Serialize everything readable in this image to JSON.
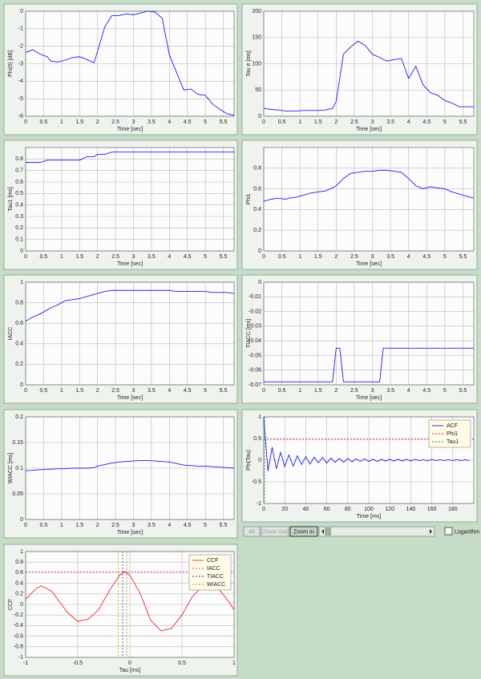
{
  "chart_data": [
    {
      "type": "line",
      "xlabel": "Time [sec]",
      "ylabel": "Phi(0) [dB]",
      "color": "#2020e0",
      "grid": true,
      "x": [
        0,
        0.2,
        0.4,
        0.6,
        0.7,
        0.9,
        1.1,
        1.3,
        1.5,
        1.7,
        1.9,
        2.0,
        2.2,
        2.4,
        2.6,
        2.8,
        3.0,
        3.2,
        3.4,
        3.6,
        3.8,
        4.0,
        4.2,
        4.4,
        4.6,
        4.8,
        5.0,
        5.2,
        5.4,
        5.6,
        5.8
      ],
      "values": [
        -2.35,
        -2.2,
        -2.45,
        -2.6,
        -2.85,
        -2.9,
        -2.8,
        -2.65,
        -2.6,
        -2.75,
        -2.95,
        -2.3,
        -0.9,
        -0.25,
        -0.25,
        -0.15,
        -0.2,
        -0.1,
        0,
        -0.05,
        -0.4,
        -2.5,
        -3.5,
        -4.5,
        -4.45,
        -4.75,
        -4.8,
        -5.3,
        -5.6,
        -5.85,
        -5.95
      ],
      "xlim": [
        0,
        5.8
      ],
      "xticks": [
        0,
        0.5,
        1,
        1.5,
        2,
        2.5,
        3,
        3.5,
        4,
        4.5,
        5,
        5.5
      ],
      "ylim": [
        -6,
        0
      ],
      "yticks": [
        -6,
        -5,
        -4,
        -3,
        -2,
        -1,
        0
      ]
    },
    {
      "type": "line",
      "xlabel": "Time [sec]",
      "ylabel": "Tau e [ms]",
      "color": "#2020e0",
      "grid": true,
      "x": [
        0,
        0.2,
        0.4,
        0.6,
        0.7,
        0.9,
        1.1,
        1.3,
        1.5,
        1.7,
        1.9,
        2.0,
        2.2,
        2.4,
        2.6,
        2.8,
        3.0,
        3.2,
        3.4,
        3.6,
        3.8,
        4.0,
        4.2,
        4.4,
        4.6,
        4.8,
        5.0,
        5.2,
        5.4,
        5.6,
        5.8
      ],
      "values": [
        15,
        13,
        12,
        10,
        10,
        10,
        11,
        11,
        11,
        12,
        15,
        28,
        118,
        132,
        143,
        135,
        118,
        112,
        105,
        108,
        110,
        72,
        95,
        60,
        45,
        40,
        30,
        25,
        18,
        18,
        18
      ],
      "xlim": [
        0,
        5.8
      ],
      "xticks": [
        0,
        0.5,
        1,
        1.5,
        2,
        2.5,
        3,
        3.5,
        4,
        4.5,
        5,
        5.5
      ],
      "ylim": [
        0,
        200
      ],
      "yticks": [
        0,
        50,
        100,
        150,
        200
      ]
    },
    {
      "type": "line",
      "xlabel": "Time [sec]",
      "ylabel": "Tau1 [ms]",
      "color": "#2020e0",
      "grid": true,
      "x": [
        0,
        0.2,
        0.4,
        0.6,
        0.7,
        0.9,
        1.1,
        1.3,
        1.5,
        1.7,
        1.9,
        2.0,
        2.2,
        2.4,
        2.6,
        2.8,
        3.0,
        3.2,
        3.4,
        3.6,
        3.8,
        4.0,
        4.2,
        4.4,
        4.6,
        4.8,
        5.0,
        5.2,
        5.4,
        5.6,
        5.8
      ],
      "values": [
        0.77,
        0.77,
        0.77,
        0.79,
        0.79,
        0.79,
        0.79,
        0.79,
        0.79,
        0.82,
        0.82,
        0.84,
        0.84,
        0.86,
        0.86,
        0.86,
        0.86,
        0.86,
        0.86,
        0.86,
        0.86,
        0.86,
        0.86,
        0.86,
        0.86,
        0.86,
        0.86,
        0.86,
        0.86,
        0.86,
        0.86
      ],
      "xlim": [
        0,
        5.8
      ],
      "xticks": [
        0,
        0.5,
        1,
        1.5,
        2,
        2.5,
        3,
        3.5,
        4,
        4.5,
        5,
        5.5
      ],
      "ylim": [
        0,
        0.9
      ],
      "yticks": [
        0,
        0.1,
        0.2,
        0.3,
        0.4,
        0.5,
        0.6,
        0.7,
        0.8
      ]
    },
    {
      "type": "line",
      "xlabel": "Time [sec]",
      "ylabel": "Phi1",
      "color": "#2020e0",
      "grid": true,
      "x": [
        0,
        0.2,
        0.4,
        0.6,
        0.7,
        0.9,
        1.1,
        1.3,
        1.5,
        1.7,
        1.9,
        2.0,
        2.2,
        2.4,
        2.6,
        2.8,
        3.0,
        3.2,
        3.4,
        3.6,
        3.8,
        4.0,
        4.2,
        4.4,
        4.6,
        4.8,
        5.0,
        5.2,
        5.4,
        5.6,
        5.8
      ],
      "values": [
        0.48,
        0.5,
        0.51,
        0.5,
        0.51,
        0.52,
        0.54,
        0.56,
        0.57,
        0.58,
        0.61,
        0.63,
        0.7,
        0.75,
        0.76,
        0.77,
        0.77,
        0.78,
        0.78,
        0.77,
        0.76,
        0.7,
        0.63,
        0.6,
        0.62,
        0.61,
        0.6,
        0.57,
        0.55,
        0.53,
        0.51
      ],
      "xlim": [
        0,
        5.8
      ],
      "xticks": [
        0,
        0.5,
        1,
        1.5,
        2,
        2.5,
        3,
        3.5,
        4,
        4.5,
        5,
        5.5
      ],
      "ylim": [
        0,
        1
      ],
      "yticks": [
        0,
        0.2,
        0.4,
        0.6,
        0.8
      ]
    },
    {
      "type": "line",
      "xlabel": "Time [sec]",
      "ylabel": "IACC",
      "color": "#2020e0",
      "grid": true,
      "x": [
        0,
        0.2,
        0.4,
        0.6,
        0.7,
        0.9,
        1.1,
        1.3,
        1.5,
        1.7,
        1.9,
        2.0,
        2.2,
        2.4,
        2.6,
        2.8,
        3.0,
        3.2,
        3.4,
        3.6,
        3.8,
        4.0,
        4.2,
        4.4,
        4.6,
        4.8,
        5.0,
        5.2,
        5.4,
        5.6,
        5.8
      ],
      "values": [
        0.62,
        0.66,
        0.69,
        0.73,
        0.75,
        0.78,
        0.82,
        0.83,
        0.84,
        0.86,
        0.88,
        0.89,
        0.91,
        0.92,
        0.92,
        0.92,
        0.92,
        0.92,
        0.92,
        0.92,
        0.92,
        0.92,
        0.91,
        0.91,
        0.91,
        0.91,
        0.91,
        0.9,
        0.9,
        0.9,
        0.89
      ],
      "xlim": [
        0,
        5.8
      ],
      "xticks": [
        0,
        0.5,
        1,
        1.5,
        2,
        2.5,
        3,
        3.5,
        4,
        4.5,
        5,
        5.5
      ],
      "ylim": [
        0,
        1
      ],
      "yticks": [
        0,
        0.2,
        0.4,
        0.6,
        0.8,
        1
      ]
    },
    {
      "type": "line",
      "xlabel": "Time [sec]",
      "ylabel": "TIACC [ms]",
      "color": "#2020e0",
      "grid": true,
      "x": [
        0,
        1.9,
        2.0,
        2.1,
        2.2,
        3.2,
        3.3,
        5.8
      ],
      "values": [
        -0.068,
        -0.068,
        -0.045,
        -0.045,
        -0.068,
        -0.068,
        -0.045,
        -0.045
      ],
      "xlim": [
        0,
        5.8
      ],
      "xticks": [
        0,
        0.5,
        1,
        1.5,
        2,
        2.5,
        3,
        3.5,
        4,
        4.5,
        5,
        5.5
      ],
      "ylim": [
        -0.07,
        0
      ],
      "yticks": [
        -0.07,
        -0.06,
        -0.05,
        -0.04,
        -0.03,
        -0.02,
        -0.01,
        0
      ]
    },
    {
      "type": "line",
      "xlabel": "Time [sec]",
      "ylabel": "WIACC [ms]",
      "color": "#2020e0",
      "grid": true,
      "x": [
        0,
        0.2,
        0.4,
        0.6,
        0.7,
        0.9,
        1.1,
        1.3,
        1.5,
        1.7,
        1.9,
        2.0,
        2.2,
        2.4,
        2.6,
        2.8,
        3.0,
        3.2,
        3.4,
        3.6,
        3.8,
        4.0,
        4.2,
        4.4,
        4.6,
        4.8,
        5.0,
        5.2,
        5.4,
        5.6,
        5.8
      ],
      "values": [
        0.095,
        0.096,
        0.097,
        0.098,
        0.098,
        0.099,
        0.099,
        0.1,
        0.1,
        0.1,
        0.101,
        0.104,
        0.107,
        0.11,
        0.112,
        0.113,
        0.114,
        0.115,
        0.115,
        0.114,
        0.113,
        0.112,
        0.109,
        0.106,
        0.105,
        0.104,
        0.104,
        0.103,
        0.102,
        0.101,
        0.1
      ],
      "xlim": [
        0,
        5.8
      ],
      "xticks": [
        0,
        0.5,
        1,
        1.5,
        2,
        2.5,
        3,
        3.5,
        4,
        4.5,
        5,
        5.5
      ],
      "ylim": [
        0,
        0.2
      ],
      "yticks": [
        0,
        0.05,
        0.1,
        0.15,
        0.2
      ]
    },
    {
      "type": "line",
      "xlabel": "Time [ms]",
      "ylabel": "Phi(Tau)",
      "grid": true,
      "legend": "upper right",
      "x": [
        0,
        4,
        8,
        12,
        16,
        20,
        24,
        28,
        32,
        36,
        40,
        44,
        48,
        52,
        56,
        60,
        64,
        68,
        72,
        76,
        80,
        84,
        88,
        92,
        96,
        100,
        104,
        108,
        112,
        116,
        120,
        124,
        128,
        132,
        136,
        140,
        144,
        148,
        152,
        156,
        160,
        164,
        168,
        172,
        176,
        180,
        184,
        188,
        192,
        196
      ],
      "series": [
        {
          "name": "ACF",
          "color": "#2020e0",
          "values": [
            1,
            -0.25,
            0.3,
            -0.2,
            0.18,
            -0.15,
            0.12,
            -0.14,
            0.1,
            -0.1,
            0.08,
            -0.09,
            0.07,
            -0.06,
            0.06,
            -0.07,
            0.05,
            -0.05,
            0.04,
            -0.05,
            0.04,
            -0.04,
            0.03,
            -0.03,
            0.03,
            -0.03,
            0.02,
            -0.03,
            0.02,
            -0.02,
            0.02,
            -0.02,
            0.02,
            -0.02,
            0.02,
            -0.02,
            0.02,
            -0.01,
            0.01,
            -0.02,
            0.02,
            -0.01,
            0.01,
            -0.01,
            0.01,
            -0.01,
            0.01,
            -0.01,
            0.01,
            -0.01
          ]
        }
      ],
      "reference_lines": [
        {
          "name": "Phi1",
          "color": "#d03030",
          "y": 0.48
        },
        {
          "name": "Tau1",
          "color": "#30a030",
          "x": 0.8
        }
      ],
      "xlim": [
        0,
        200
      ],
      "xticks": [
        0,
        20,
        40,
        60,
        80,
        100,
        120,
        140,
        160,
        180
      ],
      "ylim": [
        -1,
        1
      ],
      "yticks": [
        -1,
        -0.5,
        0,
        0.5,
        1
      ]
    },
    {
      "type": "line",
      "xlabel": "Tau [ms]",
      "ylabel": "CCF",
      "grid": true,
      "legend": "upper right",
      "x": [
        -1,
        -0.9,
        -0.85,
        -0.75,
        -0.6,
        -0.5,
        -0.4,
        -0.3,
        -0.2,
        -0.1,
        -0.05,
        0,
        0.1,
        0.2,
        0.3,
        0.4,
        0.5,
        0.6,
        0.7,
        0.75,
        0.85,
        0.95,
        1
      ],
      "series": [
        {
          "name": "CCF",
          "color": "#e03030",
          "values": [
            0.1,
            0.3,
            0.35,
            0.25,
            -0.15,
            -0.32,
            -0.28,
            -0.1,
            0.25,
            0.55,
            0.62,
            0.55,
            0.2,
            -0.3,
            -0.5,
            -0.45,
            -0.2,
            0.15,
            0.35,
            0.38,
            0.3,
            0.05,
            -0.1
          ]
        }
      ],
      "reference_lines": [
        {
          "name": "IACC",
          "color": "#e040e0",
          "y": 0.62
        },
        {
          "name": "TIACC",
          "color": "#3030c0",
          "x": -0.07
        },
        {
          "name": "WIACC",
          "color": "#a0a020",
          "x": [
            -0.11,
            -0.03
          ]
        }
      ],
      "xlim": [
        -1,
        1
      ],
      "xticks": [
        -1,
        -0.5,
        0,
        0.5,
        1
      ],
      "ylim": [
        -1,
        1
      ],
      "yticks": [
        -1,
        -0.8,
        -0.6,
        -0.4,
        -0.2,
        0,
        0.2,
        0.4,
        0.6,
        0.8,
        1
      ]
    }
  ],
  "toolbar": {
    "buttons": [
      "All",
      "Zoom Out",
      "Zoom In"
    ],
    "checkbox": "Logarithm"
  }
}
